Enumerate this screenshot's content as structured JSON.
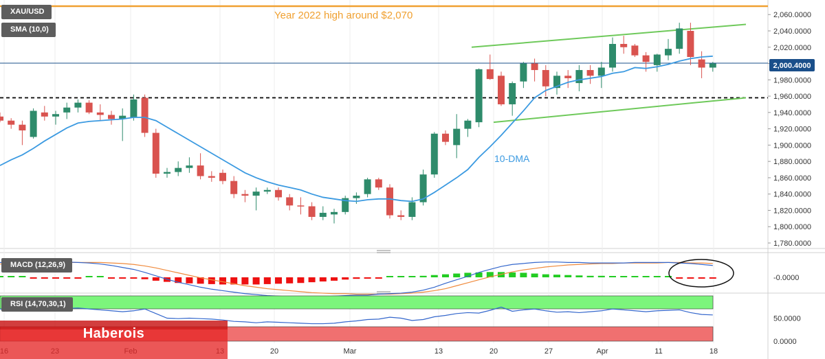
{
  "symbol": "XAU/USD",
  "indicators": {
    "sma": "SMA (10,0)",
    "macd": "MACD (12,26,9)",
    "rsi": "RSI (14,70,30,1)"
  },
  "annotations": {
    "year_high": "Year 2022 high around $2,070",
    "dma": "10-DMA"
  },
  "price_badge": "2,000.4000",
  "watermark": "Haberois",
  "colors": {
    "bull": "#2e8b6b",
    "bear": "#d9534f",
    "sma": "#3b9ae1",
    "channel": "#6ec95a",
    "year_high": "#f0a030",
    "signal": "#f08a3c",
    "rsi_zone": "#7cf57c",
    "rsi_low": "#f07070"
  },
  "chart_data": [
    {
      "type": "candlestick",
      "title": "XAU/USD",
      "x_ticks": [
        "16",
        "23",
        "Feb",
        "13",
        "20",
        "Mar",
        "13",
        "20",
        "27",
        "Apr",
        "11",
        "18"
      ],
      "y_ticks": [
        "1,780.0000",
        "1,800.0000",
        "1,820.0000",
        "1,840.0000",
        "1,860.0000",
        "1,880.0000",
        "1,900.0000",
        "1,920.0000",
        "1,940.0000",
        "1,960.0000",
        "1,980.0000",
        "2,000.0000",
        "2,020.0000",
        "2,040.0000",
        "2,060.0000"
      ],
      "ylim": [
        1775,
        2075
      ],
      "candles": [
        [
          1935,
          1940,
          1928,
          1930
        ],
        [
          1930,
          1933,
          1920,
          1925
        ],
        [
          1925,
          1930,
          1900,
          1918
        ],
        [
          1910,
          1945,
          1908,
          1942
        ],
        [
          1940,
          1948,
          1930,
          1935
        ],
        [
          1935,
          1942,
          1925,
          1938
        ],
        [
          1940,
          1952,
          1932,
          1946
        ],
        [
          1946,
          1956,
          1940,
          1952
        ],
        [
          1952,
          1955,
          1938,
          1940
        ],
        [
          1940,
          1950,
          1930,
          1937
        ],
        [
          1937,
          1942,
          1925,
          1932
        ],
        [
          1932,
          1945,
          1905,
          1936
        ],
        [
          1934,
          1962,
          1930,
          1956
        ],
        [
          1958,
          1962,
          1910,
          1915
        ],
        [
          1915,
          1920,
          1860,
          1865
        ],
        [
          1865,
          1872,
          1860,
          1867
        ],
        [
          1867,
          1880,
          1862,
          1872
        ],
        [
          1872,
          1885,
          1866,
          1875
        ],
        [
          1875,
          1890,
          1858,
          1862
        ],
        [
          1862,
          1868,
          1855,
          1860
        ],
        [
          1866,
          1870,
          1852,
          1856
        ],
        [
          1856,
          1862,
          1835,
          1840
        ],
        [
          1840,
          1845,
          1830,
          1838
        ],
        [
          1838,
          1848,
          1820,
          1843
        ],
        [
          1843,
          1848,
          1840,
          1845
        ],
        [
          1845,
          1848,
          1832,
          1836
        ],
        [
          1836,
          1840,
          1820,
          1826
        ],
        [
          1826,
          1836,
          1815,
          1825
        ],
        [
          1825,
          1830,
          1808,
          1812
        ],
        [
          1812,
          1825,
          1808,
          1817
        ],
        [
          1815,
          1822,
          1804,
          1818
        ],
        [
          1818,
          1838,
          1815,
          1835
        ],
        [
          1835,
          1842,
          1828,
          1838
        ],
        [
          1840,
          1860,
          1836,
          1858
        ],
        [
          1858,
          1860,
          1845,
          1848
        ],
        [
          1848,
          1852,
          1810,
          1814
        ],
        [
          1814,
          1820,
          1808,
          1812
        ],
        [
          1812,
          1836,
          1808,
          1830
        ],
        [
          1830,
          1870,
          1826,
          1864
        ],
        [
          1864,
          1916,
          1860,
          1914
        ],
        [
          1914,
          1918,
          1900,
          1904
        ],
        [
          1900,
          1938,
          1884,
          1920
        ],
        [
          1920,
          1932,
          1910,
          1930
        ],
        [
          1928,
          1994,
          1922,
          1993
        ],
        [
          1993,
          2011,
          1980,
          1981
        ],
        [
          1985,
          1990,
          1948,
          1950
        ],
        [
          1950,
          1978,
          1936,
          1976
        ],
        [
          1978,
          2002,
          1970,
          2000
        ],
        [
          2000,
          2006,
          1978,
          1992
        ],
        [
          1992,
          1998,
          1960,
          1972
        ],
        [
          1970,
          1990,
          1962,
          1985
        ],
        [
          1985,
          1992,
          1970,
          1982
        ],
        [
          1976,
          1998,
          1966,
          1992
        ],
        [
          1992,
          1998,
          1975,
          1985
        ],
        [
          1985,
          2002,
          1970,
          1995
        ],
        [
          1995,
          2032,
          1990,
          2024
        ],
        [
          2024,
          2034,
          2012,
          2020
        ],
        [
          2022,
          2024,
          2008,
          2010
        ],
        [
          2010,
          2014,
          1990,
          2002
        ],
        [
          1998,
          2012,
          1990,
          2011
        ],
        [
          2010,
          2030,
          2004,
          2018
        ],
        [
          2018,
          2050,
          2012,
          2043
        ],
        [
          2040,
          2050,
          1998,
          2008
        ],
        [
          2005,
          2015,
          1982,
          1995
        ],
        [
          1995,
          2002,
          1990,
          2000
        ]
      ],
      "sma_10": [
        1875,
        1882,
        1888,
        1896,
        1905,
        1913,
        1921,
        1927,
        1929,
        1930,
        1931,
        1932,
        1934,
        1934,
        1930,
        1922,
        1914,
        1906,
        1898,
        1890,
        1882,
        1874,
        1866,
        1860,
        1855,
        1851,
        1848,
        1845,
        1840,
        1836,
        1834,
        1832,
        1831,
        1833,
        1834,
        1834,
        1832,
        1831,
        1834,
        1842,
        1851,
        1860,
        1870,
        1885,
        1898,
        1912,
        1927,
        1942,
        1958,
        1967,
        1972,
        1977,
        1980,
        1982,
        1984,
        1988,
        1990,
        1995,
        1994,
        1996,
        1999,
        2003,
        2006,
        2008,
        2009
      ],
      "channel_upper": [
        [
          2000,
          2020
        ],
        [
          2050,
          2048
        ]
      ],
      "channel_lower": [
        [
          1935,
          1928
        ],
        [
          1962,
          1958
        ]
      ],
      "year_high": 2070,
      "support": 1958,
      "last_price": 2000.4
    },
    {
      "type": "bar",
      "title": "MACD (12,26,9)",
      "y_ticks": [
        "-0.0000"
      ],
      "histogram": [
        1,
        1,
        0,
        -1,
        -1,
        -1,
        -1,
        -1,
        0,
        0,
        -1,
        -2,
        -3,
        -5,
        -9,
        -12,
        -15,
        -16,
        -17,
        -18,
        -19,
        -19,
        -19,
        -19,
        -18,
        -17,
        -16,
        -15,
        -13,
        -11,
        -9,
        -6,
        -4,
        -2,
        -1,
        0,
        1,
        2,
        4,
        6,
        8,
        10,
        12,
        13,
        14,
        14,
        13,
        12,
        10,
        8,
        7,
        6,
        5,
        4,
        4,
        3,
        2,
        2,
        1,
        1,
        0,
        -1,
        -2,
        -3,
        -3
      ],
      "macd_line": [
        30,
        30,
        31,
        31,
        32,
        31,
        31,
        30,
        29,
        27,
        24,
        20,
        16,
        10,
        3,
        -4,
        -10,
        -15,
        -20,
        -24,
        -27,
        -30,
        -33,
        -35,
        -37,
        -38,
        -39,
        -40,
        -40,
        -39,
        -38,
        -37,
        -36,
        -36,
        -34,
        -33,
        -32,
        -30,
        -26,
        -20,
        -12,
        -5,
        2,
        10,
        16,
        22,
        26,
        28,
        30,
        31,
        31,
        30,
        30,
        29,
        29,
        29,
        29,
        30,
        30,
        30,
        30,
        29,
        28,
        26,
        24
      ],
      "signal_line": [
        27,
        27,
        28,
        28,
        29,
        29,
        30,
        30,
        30,
        30,
        29,
        28,
        26,
        23,
        19,
        14,
        9,
        4,
        -1,
        -5,
        -9,
        -13,
        -17,
        -20,
        -23,
        -25,
        -27,
        -29,
        -31,
        -32,
        -33,
        -33,
        -34,
        -34,
        -34,
        -34,
        -33,
        -32,
        -30,
        -27,
        -23,
        -17,
        -11,
        -5,
        1,
        6,
        11,
        15,
        18,
        21,
        23,
        25,
        26,
        27,
        28,
        28,
        29,
        29,
        29,
        29,
        30,
        30,
        29,
        29,
        28
      ]
    },
    {
      "type": "line",
      "title": "RSI (14,70,30,1)",
      "y_ticks": [
        "50.0000",
        "0.0000"
      ],
      "ylim": [
        0,
        100
      ],
      "values": [
        70,
        68,
        67,
        69,
        71,
        70,
        71,
        72,
        70,
        68,
        66,
        64,
        66,
        70,
        60,
        50,
        49,
        50,
        49,
        48,
        46,
        43,
        42,
        40,
        42,
        41,
        40,
        39,
        38,
        38,
        39,
        42,
        44,
        47,
        48,
        52,
        50,
        45,
        47,
        53,
        56,
        60,
        62,
        61,
        67,
        74,
        65,
        68,
        70,
        66,
        63,
        64,
        62,
        64,
        66,
        70,
        68,
        66,
        64,
        66,
        67,
        68,
        62,
        58,
        57
      ],
      "overbought": 70,
      "oversold": 30
    }
  ]
}
